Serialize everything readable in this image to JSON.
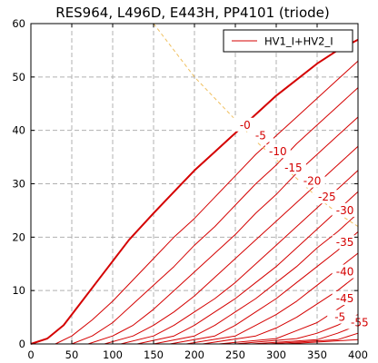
{
  "chart_data": {
    "type": "line",
    "title": "RES964, L496D, E443H, PP4101 (triode)",
    "xlabel": "",
    "ylabel": "",
    "xlim": [
      0,
      400
    ],
    "ylim": [
      0,
      60
    ],
    "x_ticks": [
      0,
      50,
      100,
      150,
      200,
      250,
      300,
      350,
      400
    ],
    "y_ticks": [
      0,
      10,
      20,
      30,
      40,
      50,
      60
    ],
    "grid": true,
    "legend": {
      "placement": "top-right",
      "entries": [
        "HV1_I+HV2_I"
      ]
    },
    "colors": {
      "curves": "#d40000",
      "load_line": "#f0c060",
      "grid": "#b0b0b0"
    },
    "load_line": {
      "style": "dashed",
      "points": [
        {
          "x": 150,
          "y": 60
        },
        {
          "x": 175,
          "y": 55
        },
        {
          "x": 200,
          "y": 50
        },
        {
          "x": 225,
          "y": 46
        },
        {
          "x": 250,
          "y": 42
        },
        {
          "x": 275,
          "y": 38
        },
        {
          "x": 300,
          "y": 34.5
        },
        {
          "x": 325,
          "y": 31
        },
        {
          "x": 350,
          "y": 27.5
        },
        {
          "x": 375,
          "y": 24.5
        },
        {
          "x": 400,
          "y": 22
        }
      ]
    },
    "series": [
      {
        "label": "-0",
        "bold": true,
        "x": [
          0,
          20,
          40,
          60,
          80,
          100,
          120,
          150,
          175,
          200,
          225,
          250,
          275,
          300,
          325,
          350,
          375,
          400
        ],
        "y": [
          0,
          1,
          3.5,
          7.5,
          11.5,
          15.5,
          19.5,
          24.5,
          28.5,
          32.5,
          36,
          39.5,
          43,
          46.5,
          49.5,
          52.5,
          55,
          57
        ]
      },
      {
        "label": "-5",
        "x": [
          30,
          50,
          75,
          100,
          125,
          150,
          175,
          200,
          225,
          250,
          275,
          300,
          325,
          350,
          375,
          400
        ],
        "y": [
          0,
          1.5,
          4.5,
          8,
          12,
          16,
          20,
          23.5,
          27.5,
          31.5,
          35.5,
          39,
          42.5,
          46,
          49.5,
          53
        ]
      },
      {
        "label": "-10",
        "x": [
          50,
          75,
          100,
          125,
          150,
          175,
          200,
          225,
          250,
          275,
          300,
          325,
          350,
          375,
          400
        ],
        "y": [
          0,
          1.5,
          4,
          7.5,
          11,
          14.5,
          18.5,
          22,
          26,
          30,
          33.5,
          37.5,
          41,
          44.5,
          48
        ]
      },
      {
        "label": "-15",
        "x": [
          70,
          100,
          125,
          150,
          175,
          200,
          225,
          250,
          275,
          300,
          325,
          350,
          375,
          400
        ],
        "y": [
          0,
          1.5,
          3.5,
          6.5,
          10,
          13.5,
          17,
          20.5,
          24.5,
          28,
          32,
          35.5,
          39,
          42.5
        ]
      },
      {
        "label": "-20",
        "x": [
          90,
          125,
          150,
          175,
          200,
          225,
          250,
          275,
          300,
          325,
          350,
          375,
          400
        ],
        "y": [
          0,
          1.5,
          3.5,
          6,
          9,
          12.5,
          16,
          19.5,
          23,
          26.5,
          30,
          33.5,
          37
        ]
      },
      {
        "label": "-25",
        "x": [
          110,
          150,
          175,
          200,
          225,
          250,
          275,
          300,
          325,
          350,
          375,
          400
        ],
        "y": [
          0,
          1.5,
          3.5,
          6,
          8.5,
          11.5,
          15,
          18.5,
          22,
          25.5,
          29,
          32.5
        ]
      },
      {
        "label": "-30",
        "x": [
          130,
          175,
          200,
          225,
          250,
          275,
          300,
          325,
          350,
          375,
          400
        ],
        "y": [
          0,
          1.5,
          3.5,
          6,
          8.5,
          11.5,
          14.5,
          18,
          21.5,
          25,
          28.5
        ]
      },
      {
        "label": "-35",
        "x": [
          150,
          200,
          225,
          250,
          275,
          300,
          325,
          350,
          375,
          400
        ],
        "y": [
          0,
          1.5,
          3.5,
          6,
          8.5,
          11.5,
          14.5,
          18,
          21,
          24.5
        ]
      },
      {
        "label": "-40",
        "x": [
          170,
          225,
          250,
          275,
          300,
          325,
          350,
          375,
          400
        ],
        "y": [
          0,
          1.5,
          3.5,
          6,
          8.5,
          11.5,
          14.5,
          17.5,
          21
        ]
      },
      {
        "label": "-45",
        "x": [
          190,
          250,
          275,
          300,
          325,
          350,
          375,
          400
        ],
        "y": [
          0,
          1.5,
          3.5,
          5.5,
          8,
          11,
          14,
          17
        ]
      },
      {
        "label": "-5",
        "x": [
          210,
          275,
          300,
          325,
          350,
          375,
          400
        ],
        "y": [
          0,
          1.5,
          3,
          5,
          7.5,
          10,
          13
        ]
      },
      {
        "label": "-55",
        "x": [
          230,
          300,
          325,
          350,
          375,
          400
        ],
        "y": [
          0,
          1,
          2.5,
          4,
          6.5,
          9
        ]
      },
      {
        "label": "",
        "x": [
          250,
          325,
          350,
          375,
          400
        ],
        "y": [
          0,
          1,
          2,
          3.5,
          5.5
        ]
      },
      {
        "label": "",
        "x": [
          270,
          350,
          375,
          400
        ],
        "y": [
          0,
          0.8,
          2,
          3.5
        ]
      },
      {
        "label": "",
        "x": [
          290,
          375,
          400
        ],
        "y": [
          0,
          0.8,
          2
        ]
      },
      {
        "label": "",
        "x": [
          310,
          400
        ],
        "y": [
          0,
          0.8
        ]
      }
    ],
    "curve_labels": [
      {
        "text": "-0",
        "x": 262,
        "y": 41
      },
      {
        "text": "-5",
        "x": 281,
        "y": 39
      },
      {
        "text": "-10",
        "x": 302,
        "y": 36
      },
      {
        "text": "-15",
        "x": 321,
        "y": 33
      },
      {
        "text": "-20",
        "x": 344,
        "y": 30.5
      },
      {
        "text": "-25",
        "x": 362,
        "y": 27.5
      },
      {
        "text": "-30",
        "x": 384,
        "y": 25
      },
      {
        "text": "-35",
        "x": 384,
        "y": 19
      },
      {
        "text": "-40",
        "x": 384,
        "y": 13.5
      },
      {
        "text": "-45",
        "x": 384,
        "y": 8.5
      },
      {
        "text": "-5",
        "x": 378,
        "y": 5
      },
      {
        "text": "-55",
        "x": 402,
        "y": 4
      }
    ]
  }
}
